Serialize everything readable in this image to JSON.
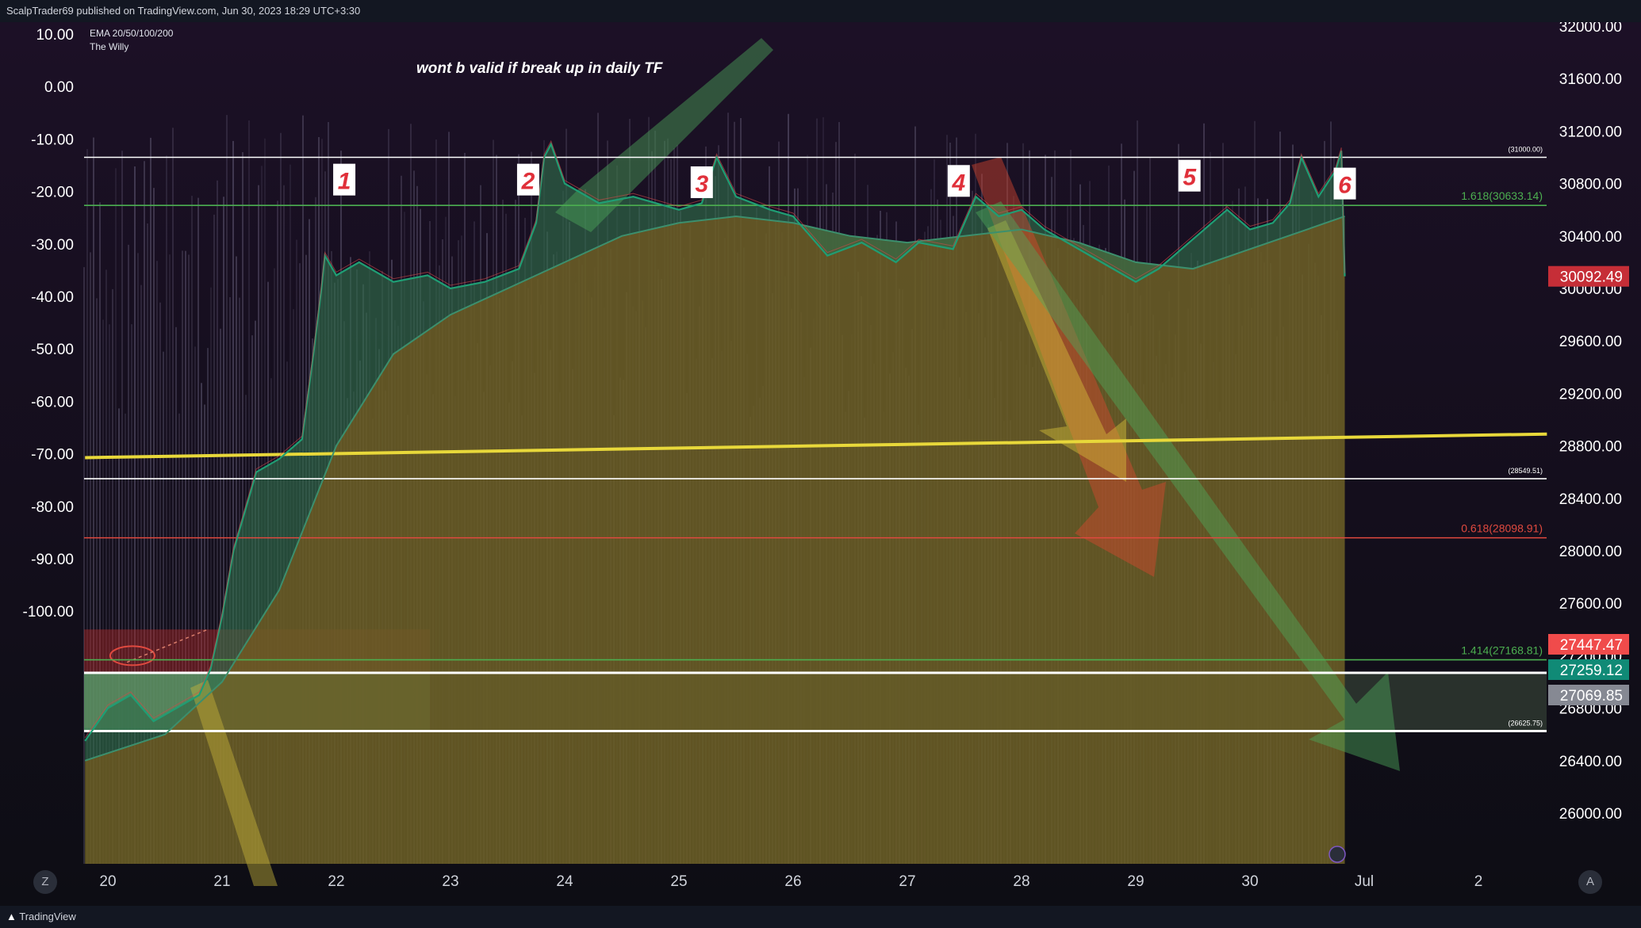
{
  "header": {
    "publisher_text": "ScalpTrader69 published on TradingView.com, Jun 30, 2023 18:29 UTC+3:30"
  },
  "legend": {
    "line1": "EMA 20/50/100/200",
    "line2": "The Willy"
  },
  "annotation": "wont b valid if break up in daily TF",
  "footer": {
    "brand": "TradingView"
  },
  "buttons": {
    "left": "Z",
    "right": "A"
  },
  "colors": {
    "background": "#0c0c12",
    "olive_fill": "#6b5e26",
    "yellow_line": "#e8d83a",
    "red_line": "#e0493f",
    "green_line": "#4caf50",
    "price_tag_red": "#c62e37",
    "price_tag_salmon": "#f04b4b",
    "price_tag_teal": "#108a76",
    "price_tag_gray": "#868993"
  },
  "chart_data": {
    "type": "line",
    "x_ticks": [
      "20",
      "21",
      "22",
      "23",
      "24",
      "25",
      "26",
      "27",
      "28",
      "29",
      "30",
      "Jul",
      "2"
    ],
    "right_axis": {
      "ticks": [
        "32000.00",
        "31600.00",
        "31200.00",
        "30800.00",
        "30400.00",
        "30000.00",
        "29600.00",
        "29200.00",
        "28800.00",
        "28400.00",
        "28000.00",
        "27600.00",
        "27200.00",
        "26800.00",
        "26400.00",
        "26000.00"
      ],
      "range": [
        25800,
        32000
      ]
    },
    "left_axis": {
      "label": "The Willy",
      "ticks": [
        "10.00",
        "0.00",
        "-10.00",
        "-20.00",
        "-30.00",
        "-40.00",
        "-50.00",
        "-60.00",
        "-70.00",
        "-80.00",
        "-90.00",
        "-100.00"
      ],
      "range": [
        -110,
        10
      ]
    },
    "price_tags": [
      {
        "value": "30092.49",
        "color": "#c62e37"
      },
      {
        "value": "27447.47",
        "color": "#f04b4b"
      },
      {
        "value": "27259.12",
        "color": "#108a76"
      },
      {
        "value": "27069.85",
        "color": "#868993"
      }
    ],
    "levels": [
      {
        "label": "(31000.00)",
        "price": 31000,
        "color": "#ffffff"
      },
      {
        "label": "1.618(30633.14)",
        "price": 30633.14,
        "color": "#4caf50"
      },
      {
        "label": "(28549.51)",
        "price": 28549.51,
        "color": "#ffffff"
      },
      {
        "label": "0.618(28098.91)",
        "price": 28098.91,
        "color": "#e0493f"
      },
      {
        "label": "1.414(27168.81)",
        "price": 27168.81,
        "color": "#4caf50"
      },
      {
        "label": "(26625.75)",
        "price": 26625.75,
        "color": "#ffffff"
      }
    ],
    "trendline": {
      "from": {
        "day": 19.8,
        "price": 28710
      },
      "to": {
        "day": 32.6,
        "price": 28890
      }
    },
    "touch_labels": [
      {
        "label": "1",
        "day": 22.07,
        "price": 30830
      },
      {
        "label": "2",
        "day": 23.68,
        "price": 30830
      },
      {
        "label": "3",
        "day": 25.2,
        "price": 30810
      },
      {
        "label": "4",
        "day": 27.45,
        "price": 30820
      },
      {
        "label": "5",
        "day": 29.47,
        "price": 30860
      },
      {
        "label": "6",
        "day": 30.83,
        "price": 30800
      }
    ],
    "price_series": {
      "x": [
        19.8,
        20.0,
        20.2,
        20.4,
        20.6,
        20.8,
        20.9,
        21.0,
        21.1,
        21.2,
        21.3,
        21.5,
        21.7,
        21.8,
        21.87,
        21.9,
        22.0,
        22.2,
        22.5,
        22.8,
        23.0,
        23.3,
        23.6,
        23.75,
        23.82,
        23.88,
        24.0,
        24.3,
        24.6,
        25.0,
        25.2,
        25.33,
        25.5,
        25.8,
        26.0,
        26.3,
        26.6,
        26.9,
        27.1,
        27.4,
        27.6,
        27.8,
        28.0,
        28.2,
        28.5,
        28.8,
        29.0,
        29.2,
        29.4,
        29.6,
        29.8,
        30.0,
        30.2,
        30.35,
        30.45,
        30.6,
        30.75,
        30.8,
        30.83
      ],
      "y": [
        26550,
        26800,
        26900,
        26700,
        26800,
        26900,
        27100,
        27500,
        28000,
        28300,
        28600,
        28700,
        28850,
        29500,
        30000,
        30250,
        30100,
        30200,
        30050,
        30100,
        30000,
        30050,
        30150,
        30500,
        31000,
        31100,
        30800,
        30650,
        30700,
        30600,
        30650,
        31000,
        30700,
        30600,
        30550,
        30250,
        30350,
        30200,
        30350,
        30300,
        30700,
        30550,
        30600,
        30450,
        30300,
        30150,
        30050,
        30150,
        30300,
        30450,
        30600,
        30450,
        30500,
        30650,
        31000,
        30700,
        30900,
        31050,
        30092.49
      ]
    },
    "ema_series": {
      "x": [
        19.8,
        20.5,
        21.0,
        21.5,
        22.0,
        22.5,
        23.0,
        23.5,
        24.0,
        24.5,
        25.0,
        25.5,
        26.0,
        26.5,
        27.0,
        27.5,
        28.0,
        28.5,
        29.0,
        29.5,
        30.0,
        30.5,
        30.83
      ],
      "y": [
        26400,
        26600,
        27000,
        27700,
        28800,
        29500,
        29800,
        30000,
        30200,
        30400,
        30500,
        30550,
        30500,
        30400,
        30350,
        30400,
        30450,
        30350,
        30200,
        30150,
        30300,
        30450,
        30550
      ]
    }
  }
}
